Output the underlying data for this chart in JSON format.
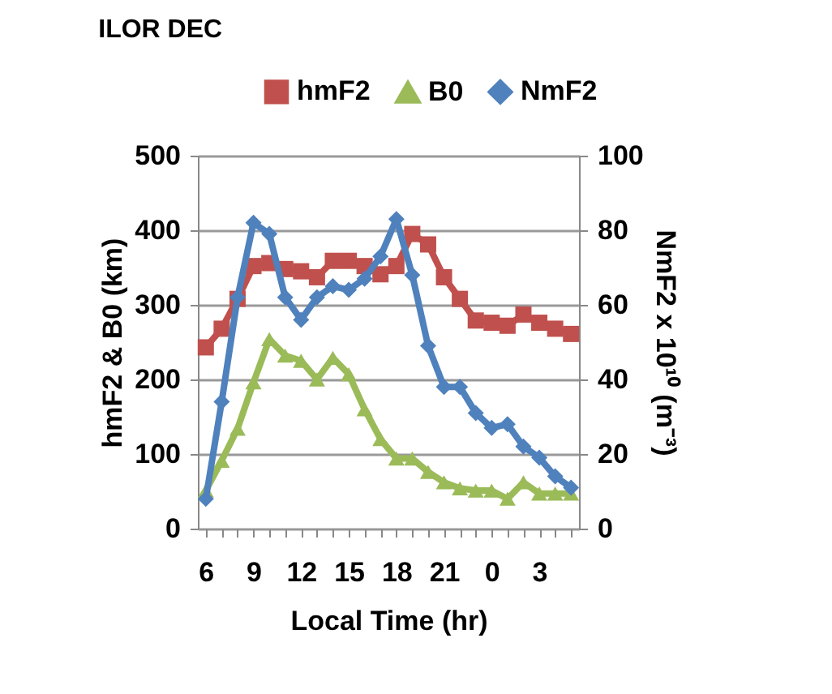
{
  "chart_data": {
    "type": "line",
    "title": "ILOR DEC",
    "xlabel": "Local Time (hr)",
    "ylabel": "hmF2 & B0 (km)",
    "y2label": "NmF2 x 10¹⁰ (m⁻³)",
    "categories": [
      "6",
      null,
      null,
      "9",
      null,
      null,
      "12",
      null,
      null,
      "15",
      null,
      null,
      "18",
      null,
      null,
      "21",
      null,
      null,
      "0",
      null,
      null,
      "3",
      null,
      null
    ],
    "series": [
      {
        "name": "hmF2",
        "color": "#c0504d",
        "marker": "square",
        "values": [
          243,
          268,
          308,
          352,
          356,
          348,
          345,
          337,
          359,
          359,
          352,
          341,
          352,
          395,
          381,
          337,
          308,
          279,
          276,
          272,
          287,
          276,
          268,
          261
        ]
      },
      {
        "name": "B0",
        "color": "#9bbb59",
        "marker": "triangle",
        "values": [
          51,
          91,
          134,
          196,
          254,
          232,
          225,
          200,
          229,
          207,
          160,
          120,
          94,
          94,
          76,
          62,
          54,
          51,
          51,
          40,
          62,
          47,
          47,
          47
        ]
      },
      {
        "name": "NmF2",
        "color": "#4f81bd",
        "marker": "diamond",
        "axis": "y2",
        "values": [
          8,
          34,
          62,
          82,
          79,
          62,
          56,
          62,
          65,
          64,
          67,
          73,
          83,
          68,
          49,
          38,
          38,
          31,
          27,
          28,
          22,
          19,
          14,
          11
        ]
      }
    ],
    "ylim": [
      0,
      500
    ],
    "yticks": [
      0,
      100,
      200,
      300,
      400,
      500
    ],
    "y2lim": [
      0,
      100
    ],
    "y2ticks": [
      0,
      20,
      40,
      60,
      80,
      100
    ],
    "grid": "y",
    "legend": "top",
    "line_style": "solid"
  }
}
